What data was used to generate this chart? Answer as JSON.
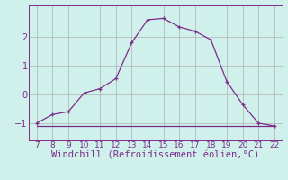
{
  "x_main": [
    7,
    8,
    9,
    10,
    11,
    12,
    13,
    14,
    15,
    16,
    17,
    18,
    19,
    20,
    21,
    22
  ],
  "y_main": [
    -1.0,
    -0.7,
    -0.6,
    0.05,
    0.2,
    0.55,
    1.8,
    2.6,
    2.65,
    2.35,
    2.2,
    1.9,
    0.45,
    -0.35,
    -1.0,
    -1.1
  ],
  "x_flat": [
    7,
    8,
    9,
    10,
    11,
    12,
    13,
    14,
    15,
    16,
    17,
    18,
    19,
    20,
    21,
    22
  ],
  "y_flat": [
    -1.1,
    -1.1,
    -1.1,
    -1.1,
    -1.1,
    -1.1,
    -1.1,
    -1.1,
    -1.1,
    -1.1,
    -1.1,
    -1.1,
    -1.1,
    -1.1,
    -1.1,
    -1.1
  ],
  "xlabel": "Windchill (Refroidissement éolien,°C)",
  "xlim": [
    6.5,
    22.5
  ],
  "ylim": [
    -1.6,
    3.1
  ],
  "yticks": [
    -1,
    0,
    1,
    2
  ],
  "xticks": [
    7,
    8,
    9,
    10,
    11,
    12,
    13,
    14,
    15,
    16,
    17,
    18,
    19,
    20,
    21,
    22
  ],
  "line_color": "#7b2d8b",
  "bg_color": "#cff0eb",
  "grid_color": "#b0b0b0",
  "xlabel_color": "#7b2d8b",
  "xlabel_fontsize": 7.5,
  "tick_fontsize": 6.5
}
